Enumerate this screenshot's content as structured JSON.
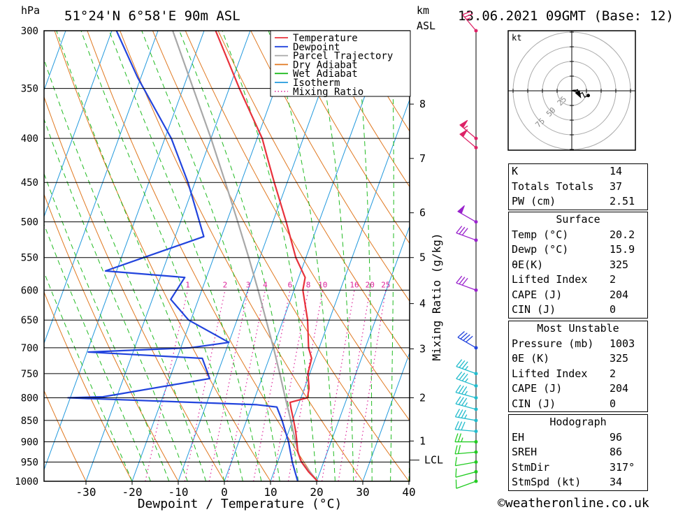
{
  "header": {
    "left_unit": "hPa",
    "location": "51°24'N  6°58'E  90m  ASL",
    "km_label": "km",
    "asl_label": "ASL",
    "datetime": "13.06.2021  09GMT  (Base: 12)"
  },
  "chart_data": {
    "type": "skew-t",
    "xlabel": "Dewpoint / Temperature (°C)",
    "ylabel_left": "hPa",
    "ylabel_right": "Mixing Ratio (g/kg)",
    "xlim": [
      -40,
      40
    ],
    "x_ticks": [
      -30,
      -20,
      -10,
      0,
      10,
      20,
      30,
      40
    ],
    "pressure_ticks": [
      300,
      350,
      400,
      450,
      500,
      550,
      600,
      650,
      700,
      750,
      800,
      850,
      900,
      950,
      1000
    ],
    "km_ticks": [
      {
        "label": "8",
        "p": 365
      },
      {
        "label": "7",
        "p": 422
      },
      {
        "label": "6",
        "p": 488
      },
      {
        "label": "5",
        "p": 550
      },
      {
        "label": "4",
        "p": 622
      },
      {
        "label": "3",
        "p": 702
      },
      {
        "label": "2",
        "p": 800
      },
      {
        "label": "1",
        "p": 898
      }
    ],
    "lcl": {
      "label": "LCL",
      "p": 945
    },
    "mixing_ratio_labels": [
      "1",
      "2",
      "3",
      "4",
      "6",
      "8",
      "10",
      "16",
      "20",
      "25"
    ],
    "legend": {
      "placement": "top",
      "entries": [
        {
          "name": "Temperature",
          "color": "#e8323c",
          "style": "solid"
        },
        {
          "name": "Dewpoint",
          "color": "#2244dd",
          "style": "solid"
        },
        {
          "name": "Parcel Trajectory",
          "color": "#a8a8a8",
          "style": "solid"
        },
        {
          "name": "Dry Adiabat",
          "color": "#e07820",
          "style": "solid"
        },
        {
          "name": "Wet Adiabat",
          "color": "#22bb22",
          "style": "solid"
        },
        {
          "name": "Isotherm",
          "color": "#2299dd",
          "style": "solid"
        },
        {
          "name": "Mixing Ratio",
          "color": "#dd2299",
          "style": "dotted"
        }
      ]
    },
    "temperature": [
      {
        "p": 1000,
        "t": 20.2
      },
      {
        "p": 975,
        "t": 17.5
      },
      {
        "p": 950,
        "t": 15.2
      },
      {
        "p": 925,
        "t": 13.6
      },
      {
        "p": 900,
        "t": 12.6
      },
      {
        "p": 875,
        "t": 11.5
      },
      {
        "p": 850,
        "t": 10.2
      },
      {
        "p": 825,
        "t": 8.8
      },
      {
        "p": 810,
        "t": 8.0
      },
      {
        "p": 800,
        "t": 11.4
      },
      {
        "p": 780,
        "t": 11.0
      },
      {
        "p": 750,
        "t": 9.6
      },
      {
        "p": 720,
        "t": 9.2
      },
      {
        "p": 700,
        "t": 7.7
      },
      {
        "p": 650,
        "t": 5.3
      },
      {
        "p": 600,
        "t": 1.9
      },
      {
        "p": 580,
        "t": 1.4
      },
      {
        "p": 550,
        "t": -2.2
      },
      {
        "p": 500,
        "t": -7.1
      },
      {
        "p": 450,
        "t": -12.8
      },
      {
        "p": 420,
        "t": -16.4
      },
      {
        "p": 400,
        "t": -18.9
      },
      {
        "p": 350,
        "t": -27.8
      },
      {
        "p": 300,
        "t": -37.5
      }
    ],
    "dewpoint": [
      {
        "p": 1000,
        "t": 15.9
      },
      {
        "p": 950,
        "t": 13.2
      },
      {
        "p": 900,
        "t": 10.8
      },
      {
        "p": 850,
        "t": 7.7
      },
      {
        "p": 820,
        "t": 5.5
      },
      {
        "p": 815,
        "t": 1.0
      },
      {
        "p": 800,
        "t": -40.5
      },
      {
        "p": 798,
        "t": -33.0
      },
      {
        "p": 760,
        "t": -11.3
      },
      {
        "p": 720,
        "t": -14.5
      },
      {
        "p": 708,
        "t": -39.7
      },
      {
        "p": 700,
        "t": -18.0
      },
      {
        "p": 690,
        "t": -10.0
      },
      {
        "p": 650,
        "t": -20.5
      },
      {
        "p": 615,
        "t": -26.0
      },
      {
        "p": 580,
        "t": -24.7
      },
      {
        "p": 570,
        "t": -42.4
      },
      {
        "p": 520,
        "t": -23.8
      },
      {
        "p": 450,
        "t": -31.5
      },
      {
        "p": 400,
        "t": -38.6
      },
      {
        "p": 370,
        "t": -44.4
      },
      {
        "p": 340,
        "t": -50.7
      },
      {
        "p": 300,
        "t": -59.0
      }
    ],
    "parcel": [
      {
        "p": 1000,
        "t": 20.2
      },
      {
        "p": 945,
        "t": 14.8
      },
      {
        "p": 900,
        "t": 12.3
      },
      {
        "p": 850,
        "t": 9.6
      },
      {
        "p": 800,
        "t": 6.6
      },
      {
        "p": 750,
        "t": 3.5
      },
      {
        "p": 700,
        "t": 0.1
      },
      {
        "p": 650,
        "t": -3.7
      },
      {
        "p": 600,
        "t": -7.8
      },
      {
        "p": 550,
        "t": -12.4
      },
      {
        "p": 500,
        "t": -17.6
      },
      {
        "p": 450,
        "t": -23.4
      },
      {
        "p": 400,
        "t": -30.0
      },
      {
        "p": 350,
        "t": -37.8
      },
      {
        "p": 300,
        "t": -46.8
      }
    ],
    "wind_barbs": [
      {
        "p": 1000,
        "dir": 250,
        "kt": 10
      },
      {
        "p": 975,
        "dir": 255,
        "kt": 12
      },
      {
        "p": 950,
        "dir": 260,
        "kt": 14
      },
      {
        "p": 925,
        "dir": 265,
        "kt": 20
      },
      {
        "p": 900,
        "dir": 270,
        "kt": 25
      },
      {
        "p": 875,
        "dir": 275,
        "kt": 30
      },
      {
        "p": 850,
        "dir": 280,
        "kt": 35
      },
      {
        "p": 825,
        "dir": 285,
        "kt": 35
      },
      {
        "p": 800,
        "dir": 285,
        "kt": 35
      },
      {
        "p": 775,
        "dir": 290,
        "kt": 35
      },
      {
        "p": 750,
        "dir": 290,
        "kt": 35
      },
      {
        "p": 700,
        "dir": 300,
        "kt": 40
      },
      {
        "p": 600,
        "dir": 290,
        "kt": 30
      },
      {
        "p": 525,
        "dir": 290,
        "kt": 30
      },
      {
        "p": 500,
        "dir": 300,
        "kt": 50
      },
      {
        "p": 410,
        "dir": 310,
        "kt": 50
      },
      {
        "p": 400,
        "dir": 310,
        "kt": 55
      },
      {
        "p": 300,
        "dir": 320,
        "kt": 25
      }
    ],
    "hodograph": {
      "unit_label": "kt",
      "ring_labels": [
        "25",
        "50",
        "75"
      ],
      "path": [
        [
          0,
          0
        ],
        [
          -3,
          1
        ],
        [
          -7,
          1
        ],
        [
          -10,
          2
        ],
        [
          -12,
          -7
        ],
        [
          -18,
          -3
        ],
        [
          -22,
          -11
        ],
        [
          -28,
          -8
        ]
      ],
      "storm_motion": [
        -16,
        -13
      ]
    }
  },
  "indices": {
    "top": [
      {
        "label": "K",
        "value": "14"
      },
      {
        "label": "Totals Totals",
        "value": "37"
      },
      {
        "label": "PW (cm)",
        "value": "2.51"
      }
    ],
    "surface": {
      "title": "Surface",
      "rows": [
        {
          "label": "Temp (°C)",
          "value": "20.2"
        },
        {
          "label": "Dewp (°C)",
          "value": "15.9"
        },
        {
          "label": "θE(K)",
          "value": "325"
        },
        {
          "label": "Lifted Index",
          "value": "2"
        },
        {
          "label": "CAPE (J)",
          "value": "204"
        },
        {
          "label": "CIN (J)",
          "value": "0"
        }
      ]
    },
    "most_unstable": {
      "title": "Most Unstable",
      "rows": [
        {
          "label": "Pressure (mb)",
          "value": "1003"
        },
        {
          "label": "θE (K)",
          "value": "325"
        },
        {
          "label": "Lifted Index",
          "value": "2"
        },
        {
          "label": "CAPE (J)",
          "value": "204"
        },
        {
          "label": "CIN (J)",
          "value": "0"
        }
      ]
    },
    "hodograph": {
      "title": "Hodograph",
      "rows": [
        {
          "label": "EH",
          "value": "96"
        },
        {
          "label": "SREH",
          "value": "86"
        },
        {
          "label": "StmDir",
          "value": "317°"
        },
        {
          "label": "StmSpd (kt)",
          "value": "34"
        }
      ]
    }
  },
  "footer": {
    "copyright": "©weatheronline.co.uk"
  }
}
